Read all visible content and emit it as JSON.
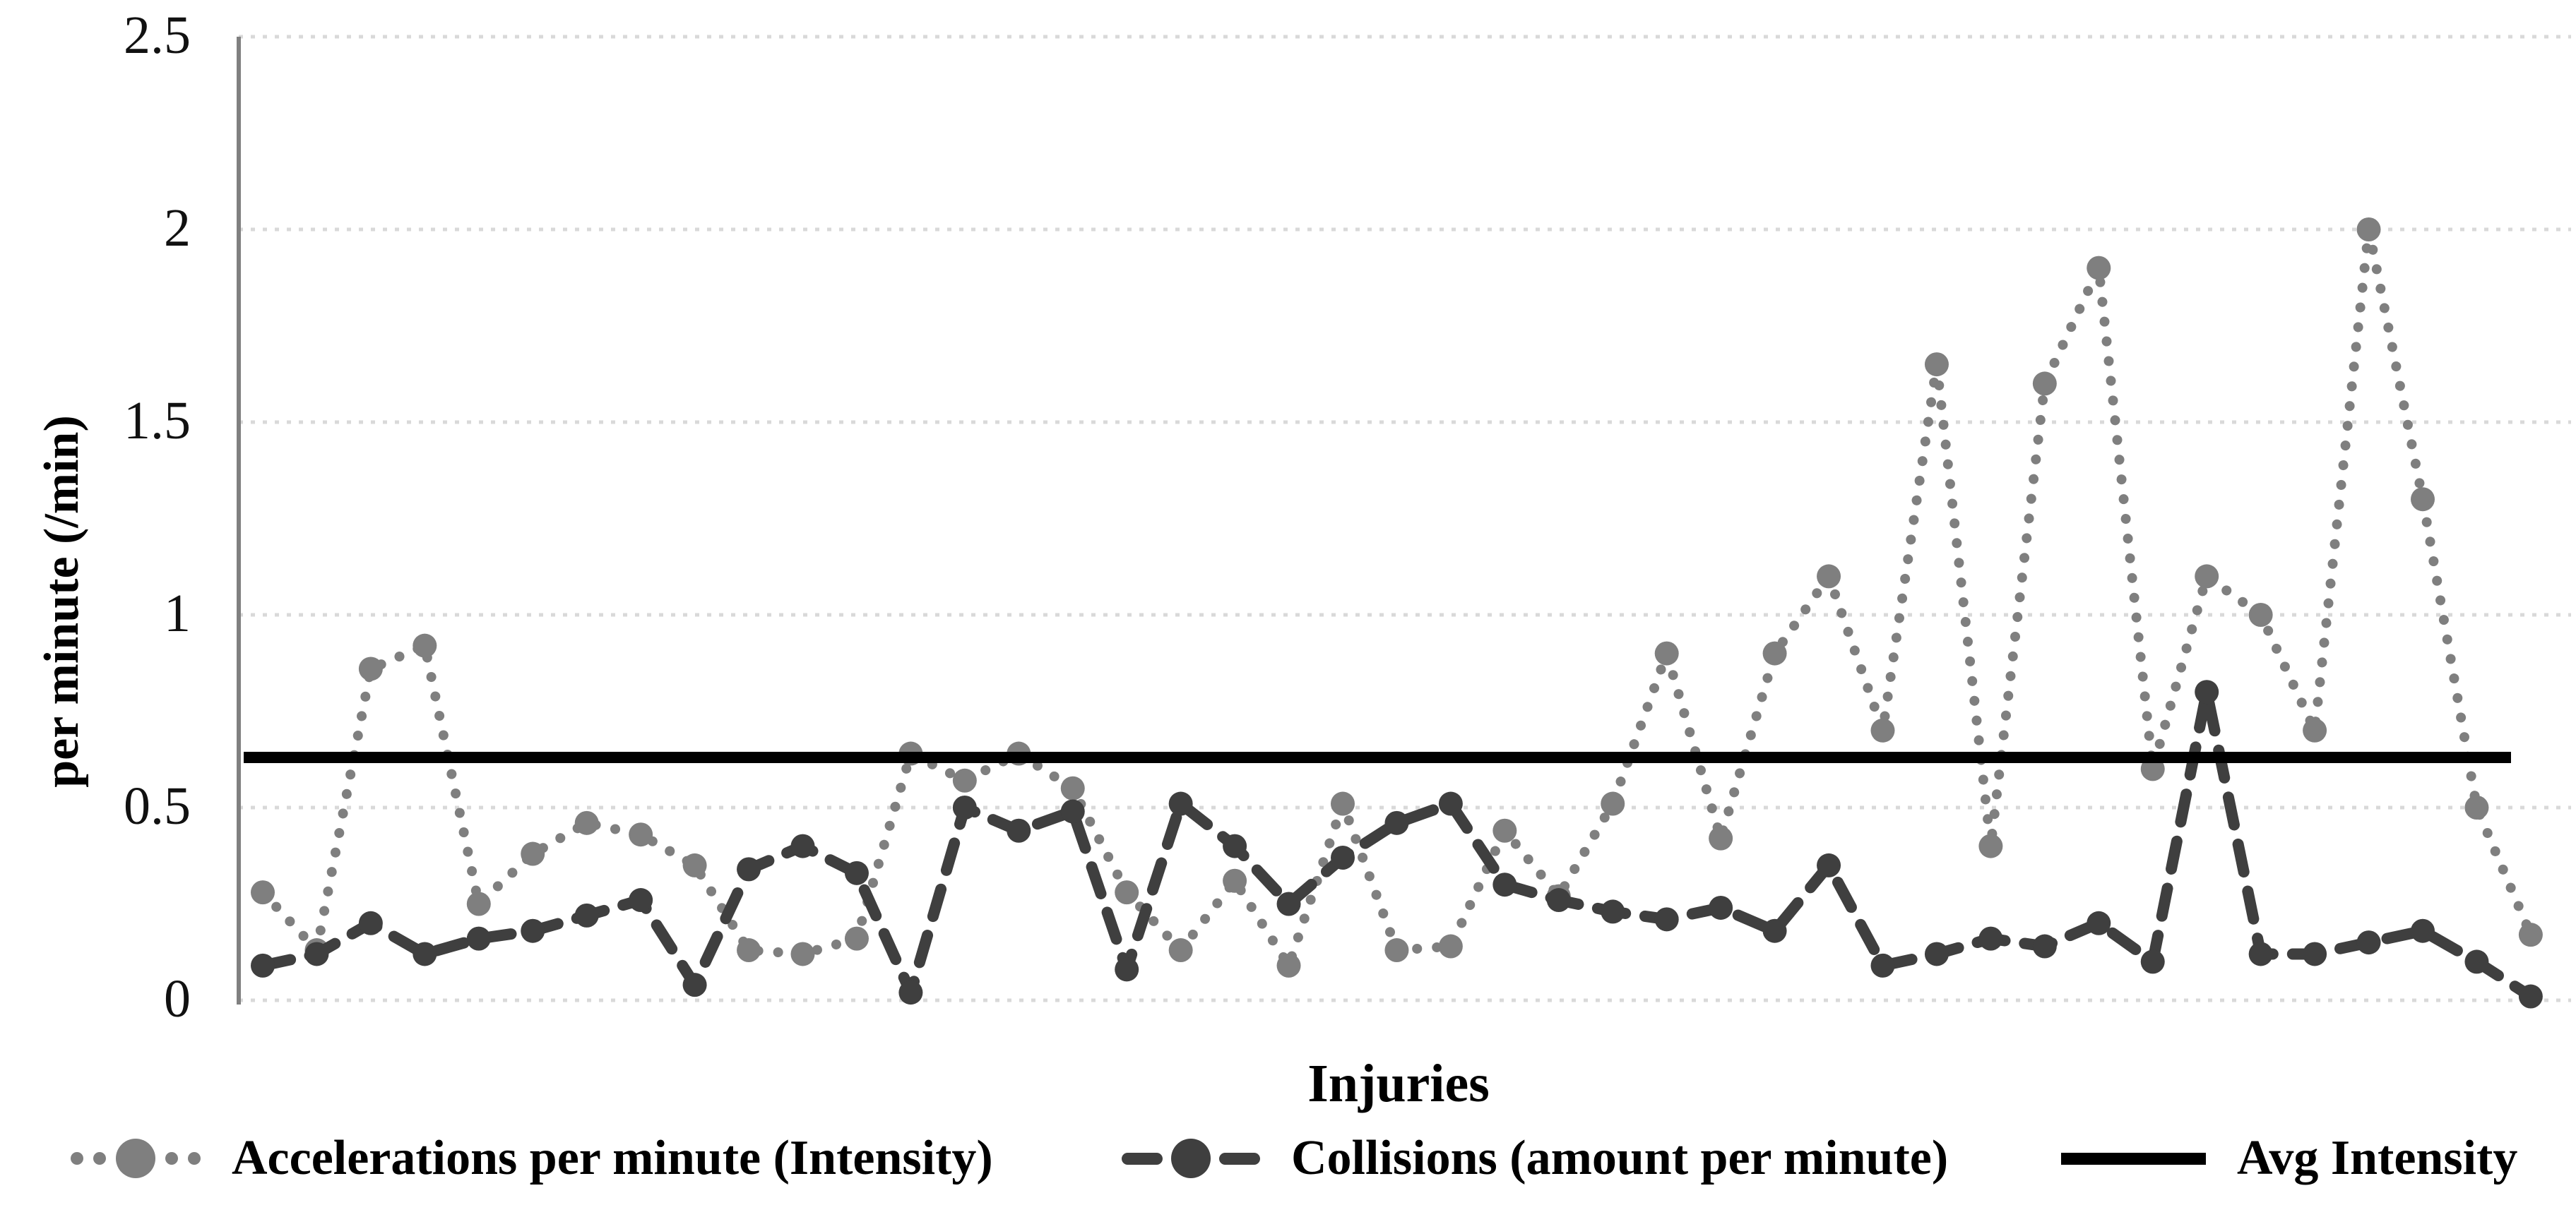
{
  "figure": {
    "background": "#ffffff",
    "y_axis": {
      "title": "per minute (/min)",
      "tick_labels": [
        "0",
        "0.5",
        "1",
        "1.5",
        "2",
        "2.5"
      ],
      "tick_values": [
        0,
        0.5,
        1,
        1.5,
        2,
        2.5
      ],
      "min": 0,
      "max": 2.5,
      "axis_line_color": "#808080"
    },
    "x_axis": {
      "title": "Injuries",
      "tick_labels": "none"
    },
    "gridline_color": "#d9d9d9",
    "legend": [
      {
        "id": "accelerations",
        "label": "Accelerations per minute (Intensity)",
        "swatch": "dotted-with-marker",
        "color": "#7f7f7f"
      },
      {
        "id": "collisions",
        "label": "Collisions (amount per minute)",
        "swatch": "dashed-with-marker",
        "color": "#3f3f3f"
      },
      {
        "id": "avg-intensity",
        "label": "Avg Intensity",
        "swatch": "solid-line",
        "color": "#000000"
      }
    ]
  },
  "chart_data": {
    "type": "line",
    "title": "",
    "xlabel": "Injuries",
    "ylabel": "per minute (/min)",
    "ylim": [
      0,
      2.5
    ],
    "y_ticks": [
      0,
      0.5,
      1,
      1.5,
      2,
      2.5
    ],
    "grid": "horizontal-dotted",
    "legend_position": "bottom",
    "x": "43 unlabeled injury cases",
    "series": [
      {
        "name": "Accelerations per minute (Intensity)",
        "style": "dotted",
        "marker": "circle",
        "color": "#7f7f7f",
        "values": [
          0.28,
          0.13,
          0.86,
          0.92,
          0.25,
          0.38,
          0.46,
          0.43,
          0.35,
          0.13,
          0.12,
          0.16,
          0.64,
          0.57,
          0.64,
          0.55,
          0.28,
          0.13,
          0.31,
          0.09,
          0.51,
          0.13,
          0.14,
          0.44,
          0.27,
          0.51,
          0.9,
          0.42,
          0.9,
          1.1,
          0.7,
          1.65,
          0.4,
          1.6,
          1.9,
          0.6,
          1.1,
          1.0,
          0.7,
          2.0,
          1.3,
          0.5,
          0.17
        ]
      },
      {
        "name": "Collisions (amount per minute)",
        "style": "dashed",
        "marker": "circle",
        "color": "#3f3f3f",
        "values": [
          0.09,
          0.12,
          0.2,
          0.12,
          0.16,
          0.18,
          0.22,
          0.26,
          0.04,
          0.34,
          0.4,
          0.33,
          0.02,
          0.5,
          0.44,
          0.49,
          0.08,
          0.51,
          0.4,
          0.25,
          0.37,
          0.46,
          0.51,
          0.3,
          0.26,
          0.23,
          0.21,
          0.24,
          0.18,
          0.35,
          0.09,
          0.12,
          0.16,
          0.14,
          0.2,
          0.1,
          0.8,
          0.12,
          0.12,
          0.15,
          0.18,
          0.1,
          0.01
        ]
      },
      {
        "name": "Avg Intensity",
        "style": "solid-horizontal",
        "marker": "none",
        "color": "#000000",
        "value": 0.63
      }
    ]
  }
}
